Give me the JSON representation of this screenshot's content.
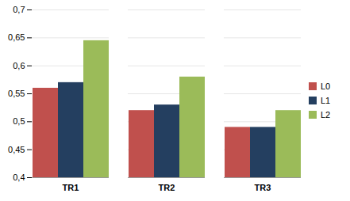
{
  "chart_data": {
    "type": "bar",
    "categories": [
      "TR1",
      "TR2",
      "TR3"
    ],
    "series": [
      {
        "name": "L0",
        "color": "#C0504D",
        "values": [
          0.56,
          0.52,
          0.49
        ]
      },
      {
        "name": "L1",
        "color": "#243F60",
        "values": [
          0.57,
          0.53,
          0.49
        ]
      },
      {
        "name": "L2",
        "color": "#9BBB59",
        "values": [
          0.645,
          0.58,
          0.52
        ]
      }
    ],
    "ylim": [
      0.4,
      0.7
    ],
    "yticks": [
      {
        "value": 0.4,
        "label": "0,4"
      },
      {
        "value": 0.45,
        "label": "0,45"
      },
      {
        "value": 0.5,
        "label": "0,5"
      },
      {
        "value": 0.55,
        "label": "0,55"
      },
      {
        "value": 0.6,
        "label": "0,6"
      },
      {
        "value": 0.65,
        "label": "0,65"
      },
      {
        "value": 0.7,
        "label": "0,7"
      }
    ],
    "grid": true,
    "legend": "right"
  }
}
